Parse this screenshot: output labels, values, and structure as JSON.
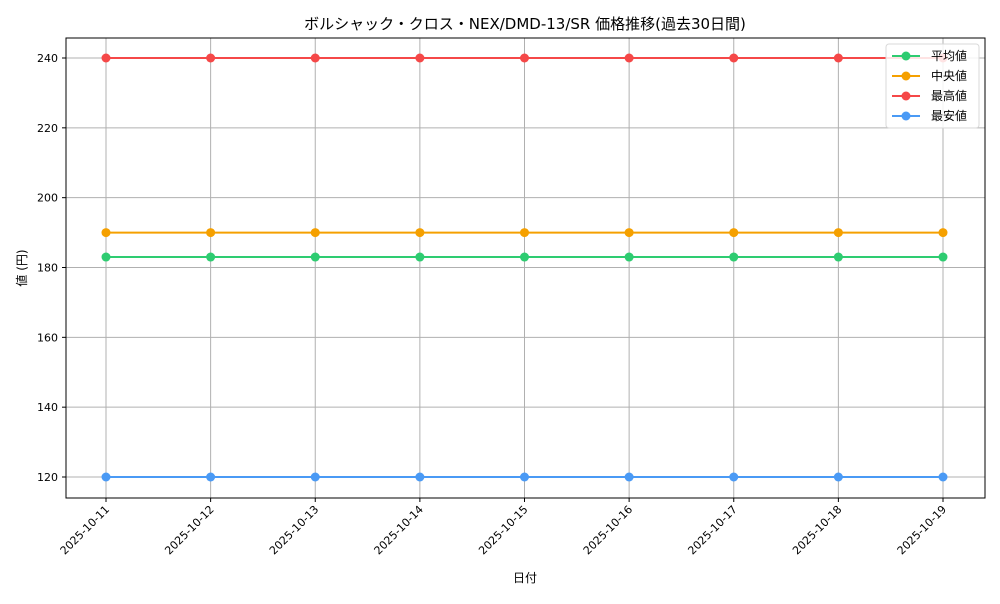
{
  "chart_data": {
    "type": "line",
    "title": "ボルシャック・クロス・NEX/DMD-13/SR 価格推移(過去30日間)",
    "xlabel": "日付",
    "ylabel": "値 (円)",
    "x": [
      "2025-10-11",
      "2025-10-12",
      "2025-10-13",
      "2025-10-14",
      "2025-10-15",
      "2025-10-16",
      "2025-10-17",
      "2025-10-18",
      "2025-10-19"
    ],
    "yticks": [
      120,
      140,
      160,
      180,
      200,
      220,
      240
    ],
    "ylim": [
      114,
      246
    ],
    "grid": true,
    "legend_position": "upper right",
    "series": [
      {
        "name": "平均値",
        "color": "#2ecc71",
        "values": [
          183,
          183,
          183,
          183,
          183,
          183,
          183,
          183,
          183
        ]
      },
      {
        "name": "中央値",
        "color": "#f5a000",
        "values": [
          190,
          190,
          190,
          190,
          190,
          190,
          190,
          190,
          190
        ]
      },
      {
        "name": "最高値",
        "color": "#f54848",
        "values": [
          240,
          240,
          240,
          240,
          240,
          240,
          240,
          240,
          240
        ]
      },
      {
        "name": "最安値",
        "color": "#4a9af5",
        "values": [
          120,
          120,
          120,
          120,
          120,
          120,
          120,
          120,
          120
        ]
      }
    ]
  }
}
